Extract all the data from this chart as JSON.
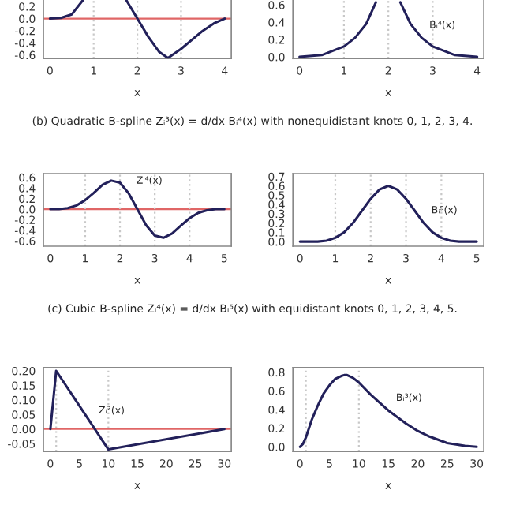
{
  "chart_data": [
    {
      "type": "line",
      "xlabel": "x",
      "x": [
        0,
        0.25,
        0.5,
        0.75,
        1.25,
        1.75,
        2,
        2.25,
        2.5,
        2.7,
        3,
        3.25,
        3.5,
        3.75,
        4
      ],
      "series": [
        {
          "color": "#22205a",
          "values": [
            0,
            0.01,
            0.07,
            0.3,
            null,
            0.3,
            0,
            -0.3,
            -0.55,
            -0.65,
            -0.5,
            -0.35,
            -0.2,
            -0.08,
            0
          ]
        }
      ],
      "xlim": [
        -0.15,
        4.15
      ],
      "ylim": [
        -0.66,
        0.34
      ],
      "xticks": [
        0,
        1,
        2,
        3,
        4
      ],
      "yticks": [
        {
          "value": -0.6,
          "label": "-0.6"
        },
        {
          "value": -0.4,
          "label": "-0.4"
        },
        {
          "value": -0.2,
          "label": "-0.2"
        },
        {
          "value": 0,
          "label": "0.0"
        },
        {
          "value": 0.2,
          "label": "0.2"
        }
      ],
      "ref_lines": [
        {
          "axis": "y",
          "value": 0,
          "color": "#e06666",
          "line_style": "solid"
        },
        {
          "axis": "x",
          "value": 1,
          "color": "#c8c8c8",
          "line_style": "dotted"
        },
        {
          "axis": "x",
          "value": 2,
          "color": "#c8c8c8",
          "line_style": "dotted"
        },
        {
          "axis": "x",
          "value": 3,
          "color": "#c8c8c8",
          "line_style": "dotted"
        }
      ],
      "annotations": [
        "(b) Quadratic B-spline Zᵢ³(x) = d/dx Bᵢ⁴(x) with nonequidistant knots 0, 1, 2, 3, 4."
      ]
    },
    {
      "type": "line",
      "xlabel": "x",
      "x": [
        0,
        0.5,
        1,
        1.25,
        1.5,
        1.72,
        2,
        2.27,
        2.5,
        2.75,
        3,
        3.5,
        4
      ],
      "series": [
        {
          "color": "#22205a",
          "values": [
            0,
            0.02,
            0.12,
            0.22,
            0.38,
            0.63,
            null,
            0.63,
            0.38,
            0.22,
            0.12,
            0.02,
            0
          ]
        }
      ],
      "xlim": [
        -0.15,
        4.15
      ],
      "ylim": [
        -0.02,
        0.68
      ],
      "xticks": [
        0,
        1,
        2,
        3,
        4
      ],
      "yticks": [
        {
          "value": 0,
          "label": "0.0"
        },
        {
          "value": 0.2,
          "label": "0.2"
        },
        {
          "value": 0.4,
          "label": "0.4"
        },
        {
          "value": 0.6,
          "label": "0.6"
        }
      ],
      "ref_lines": [
        {
          "axis": "x",
          "value": 1,
          "color": "#c8c8c8",
          "line_style": "dotted"
        },
        {
          "axis": "x",
          "value": 2,
          "color": "#c8c8c8",
          "line_style": "dotted"
        },
        {
          "axis": "x",
          "value": 3,
          "color": "#c8c8c8",
          "line_style": "dotted"
        }
      ],
      "annotations": [
        {
          "text": "Bᵢ⁴(x)",
          "x": 2.75,
          "y": 0.22
        }
      ]
    },
    {
      "type": "line",
      "xlabel": "x",
      "x": [
        0,
        0.25,
        0.5,
        0.75,
        1,
        1.25,
        1.5,
        1.75,
        2,
        2.25,
        2.5,
        2.75,
        3,
        3.25,
        3.5,
        3.75,
        4,
        4.25,
        4.5,
        4.75,
        5
      ],
      "series": [
        {
          "color": "#22205a",
          "values": [
            0,
            0,
            0.02,
            0.07,
            0.17,
            0.31,
            0.46,
            0.54,
            0.5,
            0.3,
            0,
            -0.3,
            -0.5,
            -0.54,
            -0.46,
            -0.31,
            -0.17,
            -0.07,
            -0.02,
            0,
            0
          ]
        }
      ],
      "xlim": [
        -0.2,
        5.2
      ],
      "ylim": [
        -0.7,
        0.67
      ],
      "xticks": [
        0,
        1,
        2,
        3,
        4,
        5
      ],
      "yticks": [
        {
          "value": -0.6,
          "label": "-0.6"
        },
        {
          "value": -0.4,
          "label": "-0.4"
        },
        {
          "value": -0.2,
          "label": "-0.2"
        },
        {
          "value": 0,
          "label": "0.0"
        },
        {
          "value": 0.2,
          "label": "0.2"
        },
        {
          "value": 0.4,
          "label": "0.4"
        },
        {
          "value": 0.6,
          "label": "0.6"
        }
      ],
      "ref_lines": [
        {
          "axis": "y",
          "value": 0,
          "color": "#e06666",
          "line_style": "solid"
        },
        {
          "axis": "x",
          "value": 1,
          "color": "#c8c8c8",
          "line_style": "dotted"
        },
        {
          "axis": "x",
          "value": 2,
          "color": "#c8c8c8",
          "line_style": "dotted"
        },
        {
          "axis": "x",
          "value": 3,
          "color": "#c8c8c8",
          "line_style": "dotted"
        },
        {
          "axis": "x",
          "value": 4,
          "color": "#c8c8c8",
          "line_style": "dotted"
        }
      ],
      "annotations": [
        {
          "text": "Zᵢ⁴(x)",
          "x": 2.25,
          "y": 0.3
        },
        "(c) Cubic B-spline Zᵢ⁴(x) = d/dx Bᵢ⁵(x) with equidistant knots 0, 1, 2, 3, 4, 5."
      ]
    },
    {
      "type": "line",
      "xlabel": "x",
      "x": [
        0,
        0.25,
        0.5,
        0.75,
        1,
        1.25,
        1.5,
        1.75,
        2,
        2.25,
        2.5,
        2.75,
        3,
        3.25,
        3.5,
        3.75,
        4,
        4.25,
        4.5,
        4.75,
        5
      ],
      "series": [
        {
          "color": "#22205a",
          "values": [
            0,
            0,
            0,
            0.01,
            0.04,
            0.1,
            0.2,
            0.33,
            0.46,
            0.56,
            0.6,
            0.56,
            0.46,
            0.33,
            0.2,
            0.1,
            0.04,
            0.01,
            0,
            0,
            0
          ]
        }
      ],
      "xlim": [
        -0.2,
        5.2
      ],
      "ylim": [
        -0.05,
        0.73
      ],
      "xticks": [
        0,
        1,
        2,
        3,
        4,
        5
      ],
      "yticks": [
        {
          "value": 0,
          "label": "0.0"
        },
        {
          "value": 0.1,
          "label": "0.1"
        },
        {
          "value": 0.2,
          "label": "0.2"
        },
        {
          "value": 0.3,
          "label": "0.3"
        },
        {
          "value": 0.4,
          "label": "0.4"
        },
        {
          "value": 0.5,
          "label": "0.5"
        },
        {
          "value": 0.6,
          "label": "0.6"
        },
        {
          "value": 0.7,
          "label": "0.7"
        }
      ],
      "ref_lines": [
        {
          "axis": "x",
          "value": 1,
          "color": "#c8c8c8",
          "line_style": "dotted"
        },
        {
          "axis": "x",
          "value": 2,
          "color": "#c8c8c8",
          "line_style": "dotted"
        },
        {
          "axis": "x",
          "value": 3,
          "color": "#c8c8c8",
          "line_style": "dotted"
        },
        {
          "axis": "x",
          "value": 4,
          "color": "#c8c8c8",
          "line_style": "dotted"
        }
      ],
      "annotations": [
        {
          "text": "Bᵢ⁵(x)",
          "x": 3.5,
          "y": 0.2
        }
      ]
    },
    {
      "type": "line",
      "xlabel": "x",
      "x": [
        0,
        1,
        10,
        30
      ],
      "series": [
        {
          "color": "#22205a",
          "values": [
            0,
            0.2,
            -0.07,
            0
          ]
        }
      ],
      "xlim": [
        -1.2,
        31.2
      ],
      "ylim": [
        -0.077,
        0.211
      ],
      "xticks": [
        0,
        5,
        10,
        15,
        20,
        25,
        30
      ],
      "yticks": [
        {
          "value": -0.05,
          "label": "-0.05"
        },
        {
          "value": 0,
          "label": "0.00"
        },
        {
          "value": 0.05,
          "label": "0.05"
        },
        {
          "value": 0.1,
          "label": "0.10"
        },
        {
          "value": 0.15,
          "label": "0.15"
        },
        {
          "value": 0.2,
          "label": "0.20"
        }
      ],
      "ref_lines": [
        {
          "axis": "y",
          "value": 0,
          "color": "#e06666",
          "line_style": "solid"
        },
        {
          "axis": "x",
          "value": 1,
          "color": "#c8c8c8",
          "line_style": "dotted"
        },
        {
          "axis": "x",
          "value": 10,
          "color": "#c8c8c8",
          "line_style": "dotted"
        }
      ],
      "annotations": [
        {
          "text": "Zᵢ²(x)",
          "x": 7,
          "y": 0.02
        }
      ]
    },
    {
      "type": "line",
      "xlabel": "x",
      "x": [
        0,
        0.5,
        1,
        2,
        3,
        4,
        5,
        6,
        7,
        7.5,
        8,
        9,
        10,
        12,
        15,
        18,
        20,
        22,
        25,
        28,
        30
      ],
      "series": [
        {
          "color": "#22205a",
          "values": [
            0,
            0.03,
            0.1,
            0.29,
            0.44,
            0.57,
            0.66,
            0.73,
            0.76,
            0.77,
            0.77,
            0.74,
            0.69,
            0.56,
            0.39,
            0.25,
            0.17,
            0.11,
            0.04,
            0.01,
            0
          ]
        }
      ],
      "xlim": [
        -1.2,
        31.2
      ],
      "ylim": [
        -0.05,
        0.85
      ],
      "xticks": [
        0,
        5,
        10,
        15,
        20,
        25,
        30
      ],
      "yticks": [
        {
          "value": 0,
          "label": "0.0"
        },
        {
          "value": 0.2,
          "label": "0.2"
        },
        {
          "value": 0.4,
          "label": "0.4"
        },
        {
          "value": 0.6,
          "label": "0.6"
        },
        {
          "value": 0.8,
          "label": "0.8"
        }
      ],
      "ref_lines": [
        {
          "axis": "x",
          "value": 1,
          "color": "#c8c8c8",
          "line_style": "dotted"
        },
        {
          "axis": "x",
          "value": 10,
          "color": "#c8c8c8",
          "line_style": "dotted"
        }
      ],
      "annotations": [
        {
          "text": "Bᵢ³(x)",
          "x": 15,
          "y": 0.39
        }
      ]
    }
  ]
}
